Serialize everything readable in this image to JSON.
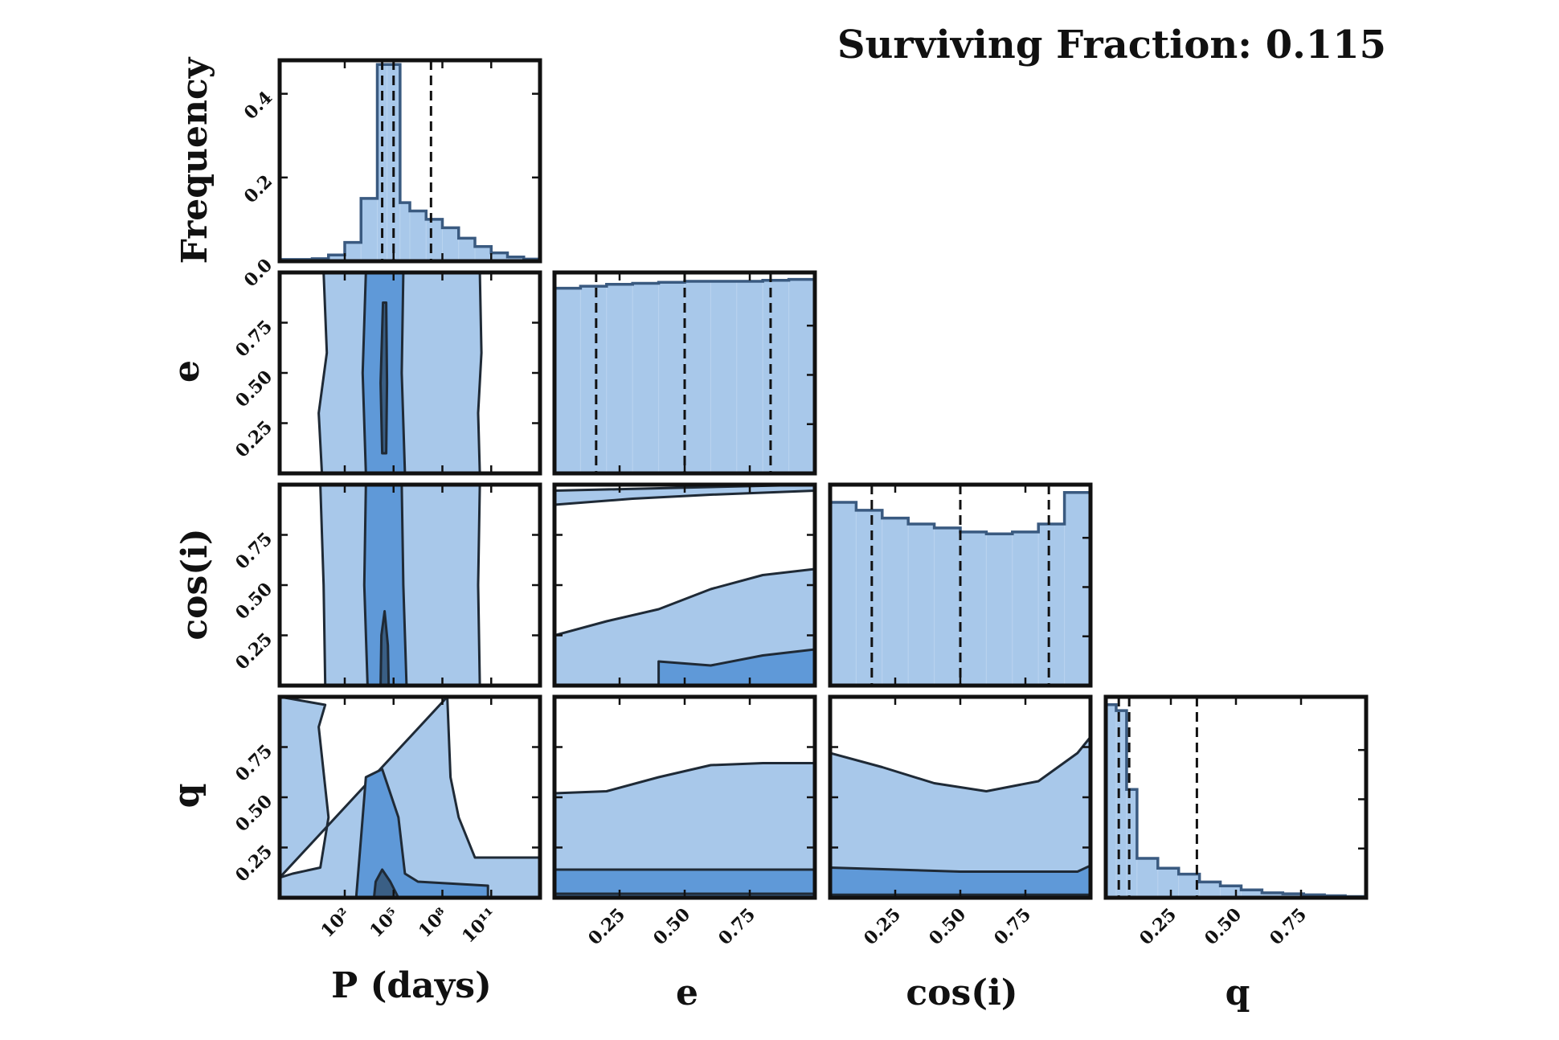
{
  "title": "Surviving Fraction: 0.115",
  "colors": {
    "light": "#a8c8ea",
    "medium": "#5f99d8",
    "dark": "#3a5f85",
    "edge": "#3a5a80",
    "line": "#111111"
  },
  "axis_labels": {
    "P": "P (days)",
    "e": "e",
    "cosi": "cos(i)",
    "q": "q",
    "frequency": "Frequency"
  },
  "chart_data": {
    "type": "corner",
    "variables": [
      "P",
      "e",
      "cosi",
      "q"
    ],
    "scale": {
      "P": "log"
    },
    "ranges": {
      "P": [
        -2,
        14
      ],
      "e": [
        0.0,
        1.0
      ],
      "cosi": [
        0.0,
        1.0
      ],
      "q": [
        0.0,
        1.0
      ],
      "frequency": [
        0,
        0.48
      ]
    },
    "ticks": {
      "P": [
        {
          "v": 2,
          "label": "10²"
        },
        {
          "v": 5,
          "label": "10⁵"
        },
        {
          "v": 8,
          "label": "10⁸"
        },
        {
          "v": 11,
          "label": "10¹¹"
        }
      ],
      "e": [
        {
          "v": 0.25,
          "label": "0.25"
        },
        {
          "v": 0.5,
          "label": "0.50"
        },
        {
          "v": 0.75,
          "label": "0.75"
        }
      ],
      "cosi": [
        {
          "v": 0.25,
          "label": "0.25"
        },
        {
          "v": 0.5,
          "label": "0.50"
        },
        {
          "v": 0.75,
          "label": "0.75"
        }
      ],
      "q": [
        {
          "v": 0.25,
          "label": "0.25"
        },
        {
          "v": 0.5,
          "label": "0.50"
        },
        {
          "v": 0.75,
          "label": "0.75"
        }
      ],
      "frequency": [
        {
          "v": 0.0,
          "label": "0.0"
        },
        {
          "v": 0.2,
          "label": "0.2"
        },
        {
          "v": 0.4,
          "label": "0.4"
        }
      ]
    },
    "histograms": {
      "P": {
        "edges": [
          -2,
          0,
          1,
          2,
          3,
          4,
          4.6,
          5.4,
          6,
          7,
          8,
          9,
          10,
          11,
          12,
          13,
          14
        ],
        "values": [
          0.004,
          0.006,
          0.015,
          0.045,
          0.15,
          0.47,
          0.47,
          0.14,
          0.12,
          0.1,
          0.08,
          0.055,
          0.035,
          0.02,
          0.01,
          0.005
        ],
        "normalized": false,
        "quantiles": [
          4.3,
          5.0,
          7.3
        ]
      },
      "e": {
        "edges": [
          0.0,
          0.1,
          0.2,
          0.3,
          0.4,
          0.5,
          0.6,
          0.7,
          0.8,
          0.9,
          1.0
        ],
        "values": [
          0.94,
          0.95,
          0.96,
          0.965,
          0.97,
          0.975,
          0.975,
          0.975,
          0.98,
          0.985
        ],
        "normalized": true,
        "quantiles": [
          0.16,
          0.5,
          0.83
        ]
      },
      "cosi": {
        "edges": [
          0.0,
          0.1,
          0.2,
          0.3,
          0.4,
          0.5,
          0.6,
          0.7,
          0.8,
          0.9,
          1.0
        ],
        "values": [
          0.93,
          0.89,
          0.85,
          0.82,
          0.8,
          0.78,
          0.77,
          0.78,
          0.82,
          0.98
        ],
        "normalized": true,
        "quantiles": [
          0.16,
          0.5,
          0.84
        ]
      },
      "q": {
        "edges": [
          0.0,
          0.04,
          0.08,
          0.12,
          0.2,
          0.28,
          0.36,
          0.44,
          0.52,
          0.6,
          0.68,
          0.76,
          0.84,
          0.92,
          1.0
        ],
        "values": [
          0.98,
          0.95,
          0.55,
          0.2,
          0.15,
          0.12,
          0.08,
          0.06,
          0.04,
          0.025,
          0.02,
          0.015,
          0.01,
          0.006
        ],
        "normalized": true,
        "quantiles": [
          0.05,
          0.09,
          0.35
        ]
      }
    },
    "contours": [
      {
        "x": "P",
        "y": "e",
        "levels": [
          {
            "level": 1,
            "polygon": [
              [
                0.6,
                0.0
              ],
              [
                0.4,
                0.3
              ],
              [
                0.9,
                0.6
              ],
              [
                0.7,
                1.0
              ],
              [
                10.3,
                1.0
              ],
              [
                10.4,
                0.6
              ],
              [
                10.2,
                0.3
              ],
              [
                10.3,
                0.0
              ]
            ]
          },
          {
            "level": 2,
            "polygon": [
              [
                3.3,
                0.0
              ],
              [
                3.1,
                0.5
              ],
              [
                3.3,
                1.0
              ],
              [
                5.6,
                1.0
              ],
              [
                5.5,
                0.5
              ],
              [
                5.7,
                0.0
              ]
            ]
          },
          {
            "level": 3,
            "polygon": [
              [
                4.3,
                0.1
              ],
              [
                4.2,
                0.45
              ],
              [
                4.35,
                0.85
              ],
              [
                4.55,
                0.85
              ],
              [
                4.6,
                0.45
              ],
              [
                4.55,
                0.1
              ]
            ]
          }
        ]
      },
      {
        "x": "P",
        "y": "cosi",
        "levels": [
          {
            "level": 1,
            "polygon": [
              [
                0.8,
                0.0
              ],
              [
                0.7,
                0.5
              ],
              [
                0.5,
                1.0
              ],
              [
                10.3,
                1.0
              ],
              [
                10.2,
                0.5
              ],
              [
                10.3,
                0.0
              ]
            ]
          },
          {
            "level": 2,
            "polygon": [
              [
                3.4,
                0.0
              ],
              [
                3.2,
                0.5
              ],
              [
                3.3,
                1.0
              ],
              [
                5.5,
                1.0
              ],
              [
                5.6,
                0.5
              ],
              [
                5.8,
                0.0
              ]
            ]
          },
          {
            "level": 3,
            "polygon": [
              [
                4.2,
                0.0
              ],
              [
                4.25,
                0.25
              ],
              [
                4.45,
                0.37
              ],
              [
                4.65,
                0.2
              ],
              [
                4.7,
                0.0
              ]
            ]
          }
        ]
      },
      {
        "x": "P",
        "y": "q",
        "levels": [
          {
            "level": 1,
            "polygon": [
              [
                -2,
                0.1
              ],
              [
                -1.2,
                0.12
              ],
              [
                0.5,
                0.15
              ],
              [
                1.0,
                0.4
              ],
              [
                0.4,
                0.85
              ],
              [
                0.8,
                0.96
              ],
              [
                -2,
                1.0
              ],
              [
                -2,
                0.1
              ],
              [
                8.3,
                1.0
              ],
              [
                8.5,
                0.6
              ],
              [
                9.0,
                0.4
              ],
              [
                10.0,
                0.2
              ],
              [
                14,
                0.2
              ],
              [
                14,
                0.0
              ],
              [
                -2,
                0.0
              ]
            ]
          },
          {
            "level": 2,
            "polygon": [
              [
                2.7,
                0.0
              ],
              [
                3.0,
                0.3
              ],
              [
                3.3,
                0.6
              ],
              [
                4.3,
                0.64
              ],
              [
                5.3,
                0.4
              ],
              [
                5.7,
                0.12
              ],
              [
                6.5,
                0.08
              ],
              [
                10.8,
                0.06
              ],
              [
                10.8,
                0.0
              ]
            ]
          },
          {
            "level": 3,
            "polygon": [
              [
                3.8,
                0.0
              ],
              [
                3.9,
                0.08
              ],
              [
                4.3,
                0.14
              ],
              [
                4.8,
                0.08
              ],
              [
                5.3,
                0.0
              ]
            ]
          }
        ]
      },
      {
        "x": "e",
        "y": "cosi",
        "levels": [
          {
            "level": 1,
            "polygon": [
              [
                0.0,
                0.25
              ],
              [
                0.2,
                0.32
              ],
              [
                0.4,
                0.38
              ],
              [
                0.6,
                0.48
              ],
              [
                0.8,
                0.55
              ],
              [
                1.0,
                0.58
              ],
              [
                1.0,
                0.97
              ],
              [
                0.6,
                0.95
              ],
              [
                0.3,
                0.93
              ],
              [
                0.0,
                0.9
              ],
              [
                0.0,
                0.97
              ],
              [
                1.0,
                1.0
              ],
              [
                1.0,
                0.0
              ],
              [
                0.0,
                0.0
              ]
            ]
          },
          {
            "level": 2,
            "polygon": [
              [
                0.4,
                0.0
              ],
              [
                0.4,
                0.12
              ],
              [
                0.6,
                0.1
              ],
              [
                0.8,
                0.15
              ],
              [
                1.0,
                0.18
              ],
              [
                1.0,
                0.0
              ]
            ]
          }
        ]
      },
      {
        "x": "e",
        "y": "q",
        "levels": [
          {
            "level": 1,
            "polygon": [
              [
                0.0,
                0.0
              ],
              [
                0.0,
                0.52
              ],
              [
                0.2,
                0.53
              ],
              [
                0.4,
                0.6
              ],
              [
                0.6,
                0.66
              ],
              [
                0.8,
                0.67
              ],
              [
                1.0,
                0.67
              ],
              [
                1.0,
                0.0
              ]
            ]
          },
          {
            "level": 2,
            "polygon": [
              [
                0.0,
                0.0
              ],
              [
                0.0,
                0.14
              ],
              [
                1.0,
                0.14
              ],
              [
                1.0,
                0.0
              ]
            ]
          },
          {
            "level": 3,
            "polygon": [
              [
                0.0,
                0.0
              ],
              [
                0.0,
                0.02
              ],
              [
                1.0,
                0.02
              ],
              [
                1.0,
                0.0
              ]
            ]
          }
        ]
      },
      {
        "x": "cosi",
        "y": "q",
        "levels": [
          {
            "level": 1,
            "polygon": [
              [
                0.0,
                0.0
              ],
              [
                0.0,
                0.72
              ],
              [
                0.2,
                0.65
              ],
              [
                0.4,
                0.57
              ],
              [
                0.6,
                0.53
              ],
              [
                0.8,
                0.58
              ],
              [
                0.95,
                0.72
              ],
              [
                1.0,
                0.8
              ],
              [
                1.0,
                0.0
              ]
            ]
          },
          {
            "level": 2,
            "polygon": [
              [
                0.0,
                0.0
              ],
              [
                0.0,
                0.15
              ],
              [
                0.5,
                0.13
              ],
              [
                0.95,
                0.13
              ],
              [
                1.0,
                0.16
              ],
              [
                1.0,
                0.0
              ]
            ]
          },
          {
            "level": 3,
            "polygon": [
              [
                0.0,
                0.0
              ],
              [
                0.0,
                0.015
              ],
              [
                1.0,
                0.015
              ],
              [
                1.0,
                0.0
              ]
            ]
          }
        ]
      }
    ]
  }
}
